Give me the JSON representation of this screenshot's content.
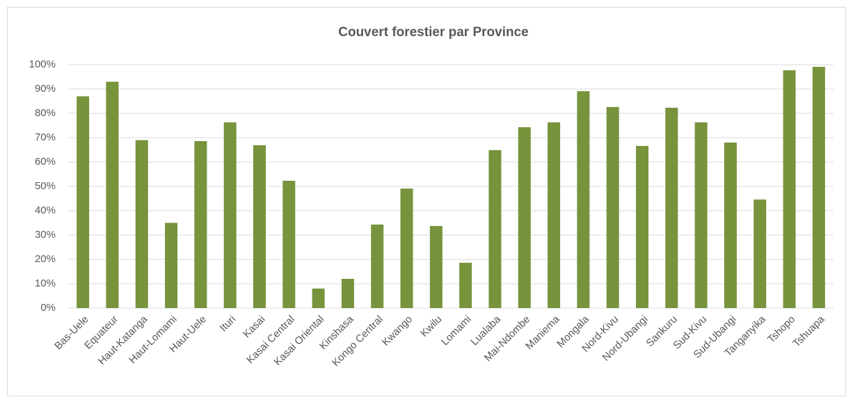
{
  "chart_data": {
    "type": "bar",
    "title": "Couvert forestier par Province",
    "categories": [
      "Bas-Uele",
      "Equateur",
      "Haut-Katanga",
      "Haut-Lomami",
      "Haut-Uele",
      "Ituri",
      "Kasai",
      "Kasai Central",
      "Kasai Oriental",
      "Kinshasa",
      "Kongo Central",
      "Kwango",
      "Kwilu",
      "Lomami",
      "Lualaba",
      "Mai-Ndombe",
      "Maniema",
      "Mongala",
      "Nord-Kivu",
      "Nord-Ubangi",
      "Sankuru",
      "Sud-Kivu",
      "Sud-Ubangi",
      "Tanganyika",
      "Tshopo",
      "Tshuapa"
    ],
    "values": [
      87,
      93,
      69,
      35,
      68.6,
      76.3,
      66.9,
      52.3,
      8,
      12,
      34.3,
      49.1,
      33.7,
      18.6,
      64.9,
      74.3,
      76.3,
      89.1,
      82.6,
      66.6,
      82.3,
      76.3,
      68,
      44.6,
      97.7,
      99.1
    ],
    "color": "#77933c",
    "ylim": [
      0,
      100
    ],
    "yticks": [
      {
        "value": 0,
        "label": "0%"
      },
      {
        "value": 10,
        "label": "10%"
      },
      {
        "value": 20,
        "label": "20%"
      },
      {
        "value": 30,
        "label": "30%"
      },
      {
        "value": 40,
        "label": "40%"
      },
      {
        "value": 50,
        "label": "50%"
      },
      {
        "value": 60,
        "label": "60%"
      },
      {
        "value": 70,
        "label": "70%"
      },
      {
        "value": 80,
        "label": "80%"
      },
      {
        "value": 90,
        "label": "90%"
      },
      {
        "value": 100,
        "label": "100%"
      }
    ],
    "grid": true
  }
}
